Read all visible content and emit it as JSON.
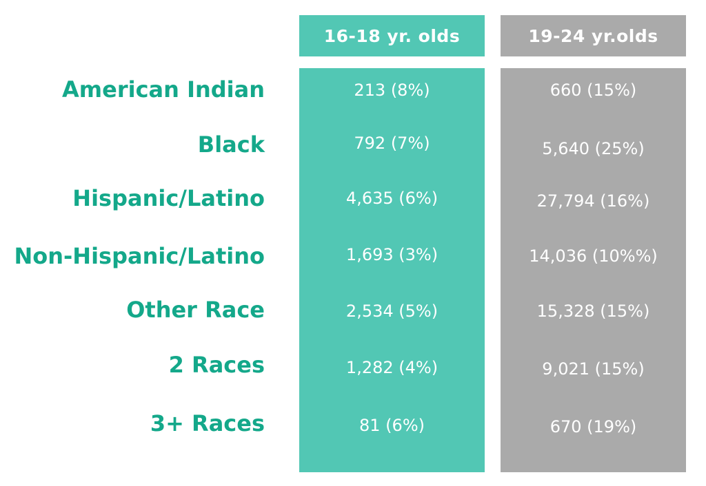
{
  "colors": {
    "teal_column": "#52c7b4",
    "gray_column": "#aaaaaa",
    "label_text": "#14a88a",
    "cell_text": "#ffffff"
  },
  "chart_data": {
    "type": "table",
    "columns": [
      "16-18 yr. olds",
      "19-24 yr.olds"
    ],
    "rows": [
      {
        "label": "American Indian",
        "cells": [
          "213 (8%)",
          "660 (15%)"
        ]
      },
      {
        "label": "Black",
        "cells": [
          "792 (7%)",
          "5,640 (25%)"
        ]
      },
      {
        "label": "Hispanic/Latino",
        "cells": [
          "4,635 (6%)",
          "27,794 (16%)"
        ]
      },
      {
        "label": "Non-Hispanic/Latino",
        "cells": [
          "1,693 (3%)",
          "14,036 (10%%)"
        ]
      },
      {
        "label": "Other Race",
        "cells": [
          "2,534 (5%)",
          "15,328 (15%)"
        ]
      },
      {
        "label": "2 Races",
        "cells": [
          "1,282 (4%)",
          "9,021 (15%)"
        ]
      },
      {
        "label": "3+ Races",
        "cells": [
          "81 (6%)",
          "670 (19%)"
        ]
      }
    ]
  }
}
